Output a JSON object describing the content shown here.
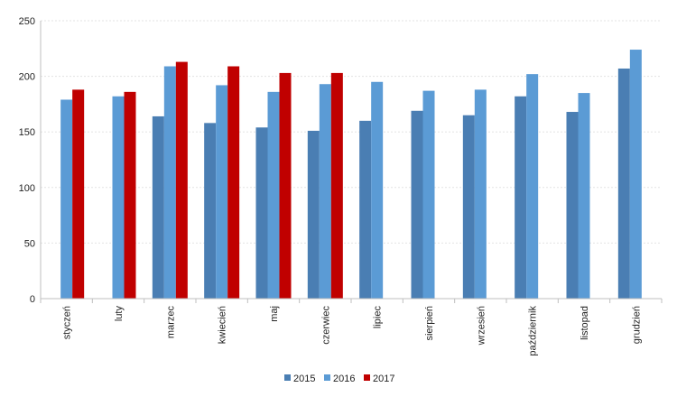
{
  "chart_data": {
    "type": "bar",
    "title": "",
    "xlabel": "",
    "ylabel": "",
    "ylim": [
      0,
      250
    ],
    "yticks": [
      0,
      50,
      100,
      150,
      200,
      250
    ],
    "grid": "horizontal",
    "legend_position": "bottom",
    "categories": [
      "styczeń",
      "luty",
      "marzec",
      "kwiecień",
      "maj",
      "czerwiec",
      "lipiec",
      "sierpień",
      "wrzesień",
      "październik",
      "listopad",
      "grudzień"
    ],
    "series": [
      {
        "name": "2015",
        "color": "#4a7eb3",
        "values": [
          null,
          null,
          164,
          158,
          154,
          151,
          160,
          169,
          165,
          182,
          168,
          207
        ]
      },
      {
        "name": "2016",
        "color": "#5b9bd5",
        "values": [
          179,
          182,
          209,
          192,
          186,
          193,
          195,
          187,
          188,
          202,
          185,
          224
        ]
      },
      {
        "name": "2017",
        "color": "#c00000",
        "values": [
          188,
          186,
          213,
          209,
          203,
          203,
          null,
          null,
          null,
          null,
          null,
          null
        ]
      }
    ]
  }
}
